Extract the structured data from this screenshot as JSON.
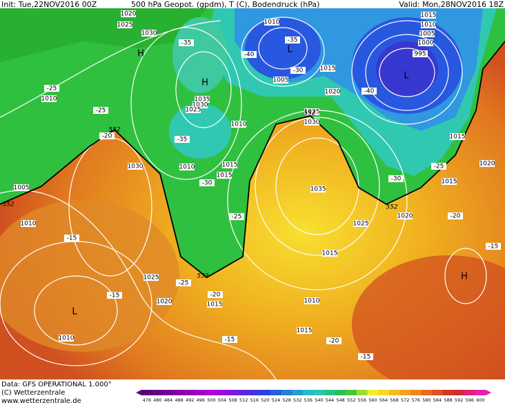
{
  "header": {
    "init": "Init: Tue,22NOV2016 00Z",
    "title": "500 hPa Geopot. (gpdm), T (C), Bodendruck (hPa)",
    "valid": "Valid: Mon,28NOV2016 18Z"
  },
  "map_labels": {
    "pressure": [
      "1020",
      "1025",
      "1030",
      "1010",
      "1015",
      "1010",
      "1005",
      "1000",
      "995",
      "1010",
      "1035",
      "1030",
      "1025",
      "1005",
      "1015",
      "1020",
      "1025",
      "1030",
      "1010",
      "1010",
      "1015",
      "1015",
      "1030",
      "1005",
      "1010",
      "1035",
      "1025",
      "1020",
      "1015",
      "1025",
      "1020",
      "1015",
      "1010",
      "1015",
      "1015",
      "1020",
      "1015",
      "1010"
    ],
    "temperature": [
      "-35",
      "-40",
      "-35",
      "-30",
      "-40",
      "-25",
      "-25",
      "-20",
      "-35",
      "-30",
      "-25",
      "-15",
      "-25",
      "-15",
      "-20",
      "-15",
      "-20",
      "-15",
      "-25",
      "-30",
      "-20",
      "-15"
    ],
    "centers": [
      "H",
      "H",
      "L",
      "L",
      "L",
      "H"
    ],
    "geopotential": [
      "552",
      "552",
      "552",
      "552",
      "552"
    ]
  },
  "footer": {
    "data": "Data: GFS OPERATIONAL 1.000°",
    "copyright": "(C) Wetterzentrale",
    "url": "www.wetterzentrale.de"
  },
  "colorbar": {
    "labels": [
      476,
      480,
      484,
      488,
      492,
      496,
      500,
      504,
      508,
      512,
      516,
      520,
      524,
      528,
      532,
      536,
      540,
      544,
      548,
      552,
      556,
      560,
      564,
      568,
      572,
      576,
      580,
      584,
      588,
      592,
      596,
      600
    ]
  }
}
